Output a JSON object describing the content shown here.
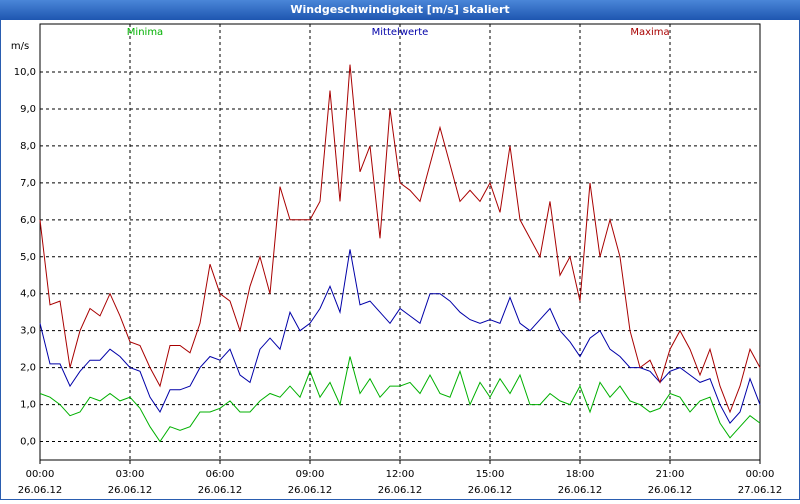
{
  "chart_data": {
    "type": "line",
    "title": "Windgeschwindigkeit [m/s] skaliert",
    "y_label": "m/s",
    "x": [
      0,
      20,
      40,
      60,
      80,
      100,
      120,
      140,
      160,
      180,
      200,
      220,
      240,
      260,
      280,
      300,
      320,
      340,
      360,
      380,
      400,
      420,
      440,
      460,
      480,
      500,
      520,
      540,
      560,
      580,
      600,
      620,
      640,
      660,
      680,
      700,
      720,
      740,
      760,
      780,
      800,
      820,
      840,
      860,
      880,
      900,
      920,
      940,
      960,
      980,
      1000,
      1020,
      1040,
      1060,
      1080,
      1100,
      1120,
      1140,
      1160,
      1180,
      1200,
      1220,
      1240,
      1260,
      1280,
      1300,
      1320,
      1340,
      1360,
      1380,
      1400,
      1420,
      1440
    ],
    "series": [
      {
        "name": "Minima",
        "color": "#00b000",
        "values": [
          1.3,
          1.2,
          1.0,
          0.7,
          0.8,
          1.2,
          1.1,
          1.3,
          1.1,
          1.2,
          0.9,
          0.4,
          0.0,
          0.4,
          0.3,
          0.4,
          0.8,
          0.8,
          0.9,
          1.1,
          0.8,
          0.8,
          1.1,
          1.3,
          1.2,
          1.5,
          1.2,
          1.9,
          1.2,
          1.6,
          1.0,
          2.3,
          1.3,
          1.7,
          1.2,
          1.5,
          1.5,
          1.6,
          1.3,
          1.8,
          1.3,
          1.2,
          1.9,
          1.0,
          1.6,
          1.2,
          1.7,
          1.3,
          1.8,
          1.0,
          1.0,
          1.3,
          1.1,
          1.0,
          1.5,
          0.8,
          1.6,
          1.2,
          1.5,
          1.1,
          1.0,
          0.8,
          0.9,
          1.3,
          1.2,
          0.8,
          1.1,
          1.2,
          0.5,
          0.1,
          0.4,
          0.7,
          0.5
        ]
      },
      {
        "name": "Mittelwerte",
        "color": "#0000a8",
        "values": [
          3.2,
          2.1,
          2.1,
          1.5,
          1.9,
          2.2,
          2.2,
          2.5,
          2.3,
          2.0,
          1.9,
          1.2,
          0.8,
          1.4,
          1.4,
          1.5,
          2.0,
          2.3,
          2.2,
          2.5,
          1.8,
          1.6,
          2.5,
          2.8,
          2.5,
          3.5,
          3.0,
          3.2,
          3.6,
          4.2,
          3.5,
          5.2,
          3.7,
          3.8,
          3.5,
          3.2,
          3.6,
          3.4,
          3.2,
          4.0,
          4.0,
          3.8,
          3.5,
          3.3,
          3.2,
          3.3,
          3.2,
          3.9,
          3.2,
          3.0,
          3.3,
          3.6,
          3.0,
          2.7,
          2.3,
          2.8,
          3.0,
          2.5,
          2.3,
          2.0,
          2.0,
          1.9,
          1.6,
          1.9,
          2.0,
          1.8,
          1.6,
          1.7,
          1.0,
          0.5,
          0.8,
          1.7,
          1.0
        ]
      },
      {
        "name": "Maxima",
        "color": "#a80000",
        "values": [
          6.0,
          3.7,
          3.8,
          2.0,
          3.0,
          3.6,
          3.4,
          4.0,
          3.4,
          2.7,
          2.6,
          2.0,
          1.5,
          2.6,
          2.6,
          2.4,
          3.2,
          4.8,
          4.0,
          3.8,
          3.0,
          4.2,
          5.0,
          4.0,
          6.9,
          6.0,
          6.0,
          6.0,
          6.5,
          9.5,
          6.5,
          10.2,
          7.3,
          8.0,
          5.5,
          9.0,
          7.0,
          6.8,
          6.5,
          7.5,
          8.5,
          7.5,
          6.5,
          6.8,
          6.5,
          7.0,
          6.2,
          8.0,
          6.0,
          5.5,
          5.0,
          6.5,
          4.5,
          5.0,
          3.8,
          7.0,
          5.0,
          6.0,
          5.0,
          3.0,
          2.0,
          2.2,
          1.6,
          2.5,
          3.0,
          2.5,
          1.8,
          2.5,
          1.5,
          0.8,
          1.5,
          2.5,
          2.0
        ]
      }
    ],
    "xlim": [
      0,
      1440
    ],
    "xticks": [
      {
        "value": 0,
        "label": "00:00"
      },
      {
        "value": 180,
        "label": "03:00"
      },
      {
        "value": 360,
        "label": "06:00"
      },
      {
        "value": 540,
        "label": "09:00"
      },
      {
        "value": 720,
        "label": "12:00"
      },
      {
        "value": 900,
        "label": "15:00"
      },
      {
        "value": 1080,
        "label": "18:00"
      },
      {
        "value": 1260,
        "label": "21:00"
      },
      {
        "value": 1440,
        "label": "00:00"
      }
    ],
    "xtick_dates": [
      "26.06.12",
      "26.06.12",
      "26.06.12",
      "26.06.12",
      "26.06.12",
      "26.06.12",
      "26.06.12",
      "26.06.12",
      "27.06.12"
    ],
    "ylim": [
      -0.5,
      11.3
    ],
    "yticks": [
      {
        "value": 0,
        "label": "0,0"
      },
      {
        "value": 1,
        "label": "1,0"
      },
      {
        "value": 2,
        "label": "2,0"
      },
      {
        "value": 3,
        "label": "3,0"
      },
      {
        "value": 4,
        "label": "4,0"
      },
      {
        "value": 5,
        "label": "5,0"
      },
      {
        "value": 6,
        "label": "6,0"
      },
      {
        "value": 7,
        "label": "7,0"
      },
      {
        "value": 8,
        "label": "8,0"
      },
      {
        "value": 9,
        "label": "9,0"
      },
      {
        "value": 10,
        "label": "10,0"
      }
    ],
    "grid": true
  }
}
